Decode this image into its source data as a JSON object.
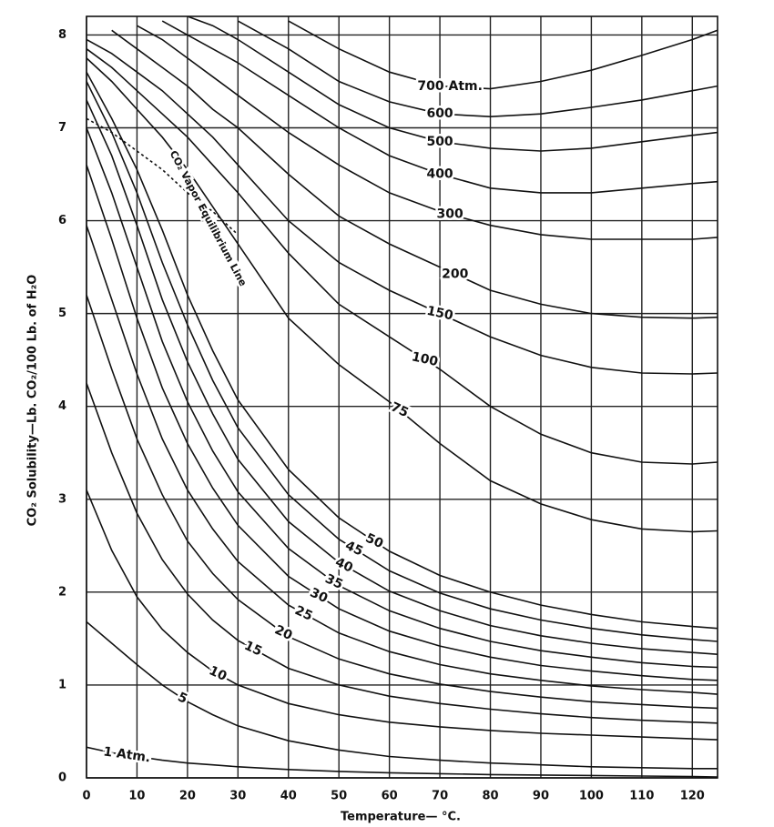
{
  "chart_data": {
    "type": "line",
    "x_label": "Temperature— °C.",
    "y_label": "CO₂ Solubility—Lb. CO₂/100 Lb. of H₂O",
    "x": [
      0,
      5,
      10,
      15,
      20,
      25,
      30,
      40,
      50,
      60,
      70,
      80,
      90,
      100,
      110,
      120,
      125
    ],
    "xlim": [
      0,
      125
    ],
    "xticks": [
      0,
      10,
      20,
      30,
      40,
      50,
      60,
      70,
      80,
      90,
      100,
      110,
      120
    ],
    "ylim": [
      0,
      8.2
    ],
    "yticks": [
      0,
      1,
      2,
      3,
      4,
      5,
      6,
      7,
      8
    ],
    "grid": true,
    "series": [
      {
        "name": "700 Atm.",
        "color": "#111111",
        "values": [
          null,
          null,
          null,
          null,
          null,
          null,
          null,
          8.15,
          7.85,
          7.6,
          7.45,
          7.42,
          7.5,
          7.62,
          7.78,
          7.95,
          8.05
        ]
      },
      {
        "name": "600",
        "color": "#111111",
        "values": [
          null,
          null,
          null,
          null,
          null,
          null,
          8.15,
          7.85,
          7.5,
          7.28,
          7.15,
          7.12,
          7.15,
          7.22,
          7.3,
          7.4,
          7.45
        ]
      },
      {
        "name": "500",
        "color": "#111111",
        "values": [
          null,
          null,
          null,
          null,
          8.2,
          8.1,
          7.95,
          7.6,
          7.25,
          7.0,
          6.85,
          6.78,
          6.75,
          6.78,
          6.85,
          6.92,
          6.95
        ]
      },
      {
        "name": "400",
        "color": "#111111",
        "values": [
          null,
          null,
          null,
          8.15,
          8.0,
          7.85,
          7.7,
          7.35,
          7.0,
          6.7,
          6.5,
          6.35,
          6.3,
          6.3,
          6.35,
          6.4,
          6.42
        ]
      },
      {
        "name": "300",
        "color": "#111111",
        "values": [
          null,
          null,
          8.1,
          7.95,
          7.75,
          7.55,
          7.35,
          6.95,
          6.6,
          6.3,
          6.1,
          5.95,
          5.85,
          5.8,
          5.8,
          5.8,
          5.82
        ]
      },
      {
        "name": "200",
        "color": "#111111",
        "values": [
          null,
          8.05,
          7.85,
          7.65,
          7.45,
          7.2,
          7.0,
          6.5,
          6.05,
          5.75,
          5.5,
          5.25,
          5.1,
          5.0,
          4.96,
          4.95,
          4.96
        ]
      },
      {
        "name": "150",
        "color": "#111111",
        "values": [
          7.95,
          7.8,
          7.6,
          7.4,
          7.15,
          6.9,
          6.6,
          6.0,
          5.55,
          5.25,
          5.0,
          4.75,
          4.55,
          4.42,
          4.36,
          4.35,
          4.36
        ]
      },
      {
        "name": "100",
        "color": "#111111",
        "values": [
          7.85,
          7.65,
          7.4,
          7.15,
          6.9,
          6.6,
          6.3,
          5.65,
          5.1,
          4.75,
          4.4,
          4.0,
          3.7,
          3.5,
          3.4,
          3.38,
          3.4
        ]
      },
      {
        "name": "75",
        "color": "#111111",
        "values": [
          7.75,
          7.5,
          7.2,
          6.9,
          6.55,
          6.15,
          5.75,
          4.95,
          4.45,
          4.05,
          3.6,
          3.2,
          2.95,
          2.78,
          2.68,
          2.65,
          2.66
        ]
      },
      {
        "name": "50",
        "color": "#111111",
        "values": [
          7.6,
          7.1,
          6.55,
          5.9,
          5.2,
          4.6,
          4.07,
          3.32,
          2.8,
          2.44,
          2.18,
          2.0,
          1.86,
          1.76,
          1.68,
          1.63,
          1.61
        ]
      },
      {
        "name": "45",
        "color": "#111111",
        "values": [
          7.5,
          6.95,
          6.3,
          5.55,
          4.88,
          4.28,
          3.77,
          3.05,
          2.57,
          2.23,
          1.99,
          1.82,
          1.7,
          1.61,
          1.54,
          1.49,
          1.47
        ]
      },
      {
        "name": "40",
        "color": "#111111",
        "values": [
          7.3,
          6.7,
          5.95,
          5.15,
          4.48,
          3.92,
          3.43,
          2.76,
          2.32,
          2.01,
          1.8,
          1.64,
          1.53,
          1.45,
          1.39,
          1.35,
          1.33
        ]
      },
      {
        "name": "35",
        "color": "#111111",
        "values": [
          7.0,
          6.3,
          5.5,
          4.7,
          4.05,
          3.52,
          3.08,
          2.47,
          2.07,
          1.8,
          1.61,
          1.47,
          1.37,
          1.3,
          1.24,
          1.2,
          1.19
        ]
      },
      {
        "name": "30",
        "color": "#111111",
        "values": [
          6.6,
          5.8,
          4.95,
          4.2,
          3.6,
          3.12,
          2.72,
          2.17,
          1.82,
          1.58,
          1.42,
          1.3,
          1.21,
          1.15,
          1.1,
          1.06,
          1.05
        ]
      },
      {
        "name": "25",
        "color": "#111111",
        "values": [
          5.95,
          5.15,
          4.35,
          3.65,
          3.1,
          2.68,
          2.33,
          1.86,
          1.56,
          1.36,
          1.22,
          1.12,
          1.05,
          0.99,
          0.95,
          0.92,
          0.9
        ]
      },
      {
        "name": "20",
        "color": "#111111",
        "values": [
          5.2,
          4.4,
          3.65,
          3.05,
          2.55,
          2.2,
          1.92,
          1.52,
          1.28,
          1.12,
          1.01,
          0.93,
          0.87,
          0.82,
          0.79,
          0.76,
          0.75
        ]
      },
      {
        "name": "15",
        "color": "#111111",
        "values": [
          4.25,
          3.5,
          2.85,
          2.35,
          1.98,
          1.7,
          1.48,
          1.18,
          1.0,
          0.88,
          0.8,
          0.74,
          0.69,
          0.65,
          0.62,
          0.6,
          0.59
        ]
      },
      {
        "name": "10",
        "color": "#111111",
        "values": [
          3.1,
          2.45,
          1.95,
          1.6,
          1.35,
          1.15,
          1.0,
          0.8,
          0.68,
          0.6,
          0.55,
          0.51,
          0.48,
          0.46,
          0.44,
          0.42,
          0.41
        ]
      },
      {
        "name": "5",
        "color": "#111111",
        "values": [
          1.68,
          1.45,
          1.22,
          1.0,
          0.82,
          0.68,
          0.56,
          0.4,
          0.3,
          0.23,
          0.19,
          0.16,
          0.14,
          0.12,
          0.11,
          0.1,
          0.1
        ]
      },
      {
        "name": "1 Atm.",
        "color": "#111111",
        "values": [
          0.33,
          0.27,
          0.23,
          0.19,
          0.16,
          0.14,
          0.12,
          0.09,
          0.07,
          0.055,
          0.045,
          0.035,
          0.03,
          0.025,
          0.02,
          0.015,
          0.01
        ]
      },
      {
        "name": "CO₂ Vapor Equilibrium Line",
        "color": "#111111",
        "dashed": true,
        "values": [
          7.1,
          6.95,
          6.75,
          6.55,
          6.3,
          6.1,
          5.85,
          null,
          null,
          null,
          null,
          null,
          null,
          null,
          null,
          null,
          null
        ]
      }
    ]
  }
}
